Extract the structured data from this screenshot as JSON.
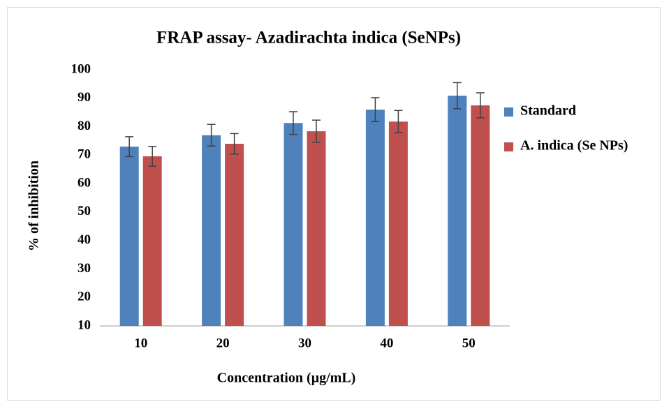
{
  "chart_data": {
    "type": "bar",
    "title": "FRAP assay- Azadirachta indica (SeNPs)",
    "x_label": "Concentration (µg/mL)",
    "y_label": "% of inhibition",
    "categories": [
      "10",
      "20",
      "30",
      "40",
      "50"
    ],
    "series": [
      {
        "name": "Standard",
        "color": "#4f81bd",
        "values": [
          73,
          77,
          81.3,
          86,
          90.9
        ],
        "errors": [
          3.5,
          3.8,
          4,
          4.2,
          4.6
        ]
      },
      {
        "name": "A. indica (Se NPs)",
        "color": "#c0504d",
        "values": [
          69.6,
          74,
          78.4,
          81.8,
          87.5
        ],
        "errors": [
          3.5,
          3.6,
          3.9,
          3.9,
          4.4
        ]
      }
    ],
    "ylim": [
      10,
      100
    ],
    "yticks": [
      10,
      20,
      30,
      40,
      50,
      60,
      70,
      80,
      90,
      100
    ],
    "legend": "right"
  }
}
